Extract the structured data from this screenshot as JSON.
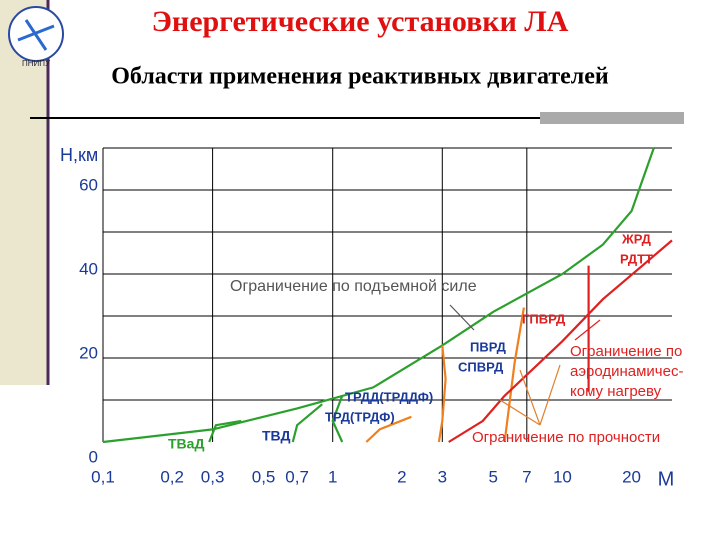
{
  "logo": {
    "label": "ПНИПУ"
  },
  "chart_data": {
    "type": "line",
    "title": "Энергетические установки ЛА",
    "subtitle": "Области применения реактивных двигателей",
    "y_label": "H,км",
    "x_label": "M",
    "xscale": "log",
    "xlim": [
      0.1,
      30
    ],
    "xticks": [
      {
        "value": 0.1,
        "label": "0,1"
      },
      {
        "value": 0.2,
        "label": "0,2"
      },
      {
        "value": 0.3,
        "label": "0,3"
      },
      {
        "value": 0.5,
        "label": "0,5"
      },
      {
        "value": 0.7,
        "label": "0,7"
      },
      1,
      2,
      3,
      5,
      7,
      10,
      20
    ],
    "xgrid": [
      0.3,
      1,
      3,
      7
    ],
    "ylim": [
      0,
      70
    ],
    "yticks": [
      0,
      20,
      40,
      60
    ],
    "ygrid": [
      10,
      20,
      30,
      40,
      50,
      60,
      70
    ],
    "series": [
      {
        "color": "#2ca02c",
        "x": [
          0.1,
          0.3,
          0.7,
          1.5,
          3,
          5,
          10,
          15,
          20,
          25
        ],
        "values": [
          0,
          3,
          8,
          13,
          23,
          31,
          40,
          47,
          55,
          70
        ]
      },
      {
        "color": "#2ca02c",
        "x": [
          0.29,
          0.31,
          0.4
        ],
        "values": [
          0,
          4,
          5
        ]
      },
      {
        "color": "#2ca02c",
        "x": [
          0.67,
          0.7,
          0.9
        ],
        "values": [
          0,
          4,
          9
        ]
      },
      {
        "color": "#2ca02c",
        "x": [
          1.1,
          1,
          1.1
        ],
        "values": [
          0,
          5,
          11
        ]
      },
      {
        "color": "#f07f1e",
        "x": [
          1.4,
          1.6,
          2.2
        ],
        "values": [
          0,
          3,
          6
        ]
      },
      {
        "color": "#f07f1e",
        "x": [
          2.9,
          3,
          3.1,
          3
        ],
        "values": [
          0,
          5,
          15,
          23
        ]
      },
      {
        "color": "#f07f1e",
        "x": [
          5.6,
          6.2,
          6.8
        ],
        "values": [
          0,
          19,
          32
        ]
      },
      {
        "color": "#e02020",
        "x": [
          13,
          13
        ],
        "values": [
          12,
          42
        ]
      },
      {
        "color": "#e02020",
        "x": [
          3.2,
          4.5,
          5.6,
          10,
          15,
          30
        ],
        "values": [
          0,
          5,
          11,
          24,
          34,
          48
        ]
      }
    ],
    "annotations": [
      {
        "text": "Ограничение по подъемной силе",
        "color": "#555555"
      },
      {
        "text": "ТВаД",
        "color": "#2ca02c"
      },
      {
        "text": "ТВД",
        "color": "#1a3a9a"
      },
      {
        "text": "ТРДД(ТРДДФ)",
        "color": "#1a3a9a"
      },
      {
        "text": "ТРД(ТРДФ)",
        "color": "#1a3a9a"
      },
      {
        "text": "ПВРД",
        "color": "#1a3a9a"
      },
      {
        "text": "СПВРД",
        "color": "#1a3a9a"
      },
      {
        "text": "ГПВРД",
        "color": "#e02020"
      },
      {
        "text": "ЖРД",
        "color": "#e02020"
      },
      {
        "text": "РДТТ",
        "color": "#e02020"
      },
      {
        "text": "Ограничение по",
        "color": "#e02020"
      },
      {
        "text": "аэродинамичес-",
        "color": "#e02020"
      },
      {
        "text": "кому нагреву",
        "color": "#e02020"
      },
      {
        "text": "Ограничение по прочности",
        "color": "#e02020"
      }
    ]
  }
}
